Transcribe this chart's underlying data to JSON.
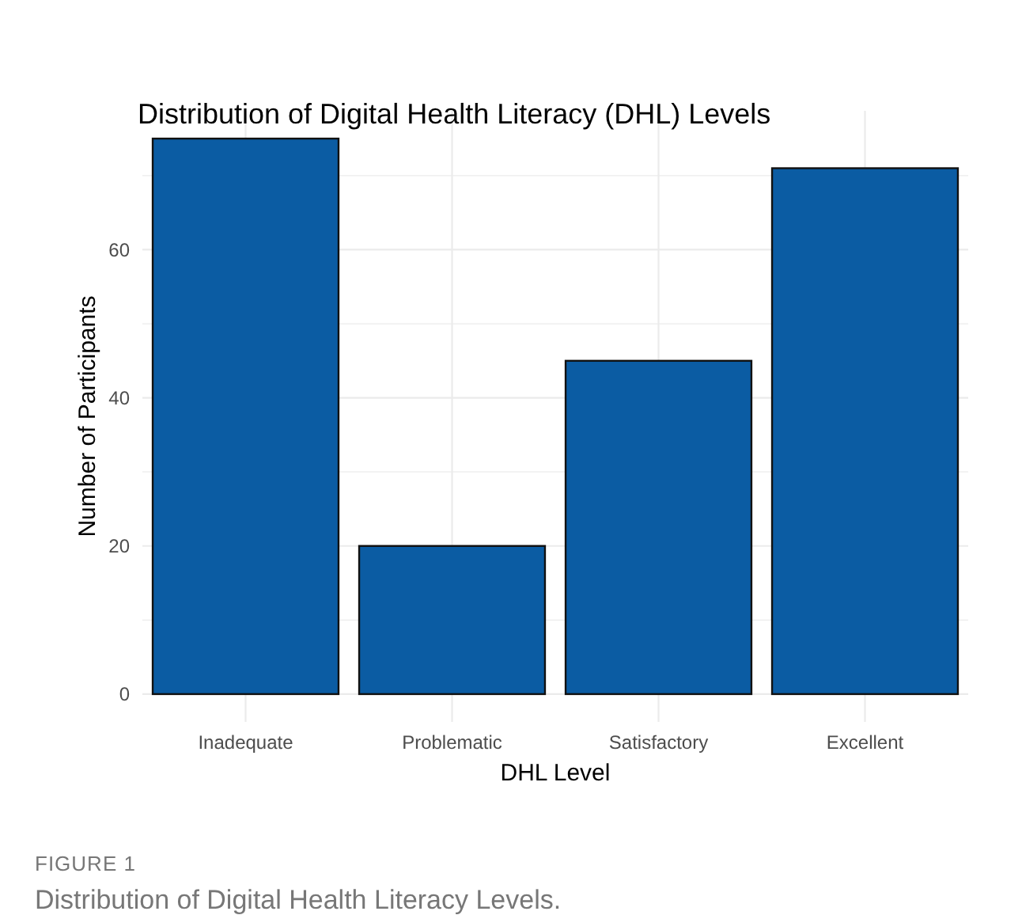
{
  "chart_data": {
    "type": "bar",
    "title": "Distribution of Digital Health Literacy (DHL) Levels",
    "xlabel": "DHL Level",
    "ylabel": "Number of Participants",
    "categories": [
      "Inadequate",
      "Problematic",
      "Satisfactory",
      "Excellent"
    ],
    "values": [
      75,
      20,
      45,
      71
    ],
    "color": "#0b5ca3",
    "ylim": [
      -3.75,
      78.75
    ],
    "yticks": [
      0,
      {
        "value": 10,
        "label": null
      },
      20,
      {
        "value": 30,
        "label": null
      },
      40,
      {
        "value": 50,
        "label": null
      },
      60,
      {
        "value": 70,
        "label": null
      }
    ],
    "grid": true,
    "annotations": [
      "FIGURE 1",
      "Distribution of Digital Health Literacy Levels."
    ]
  }
}
